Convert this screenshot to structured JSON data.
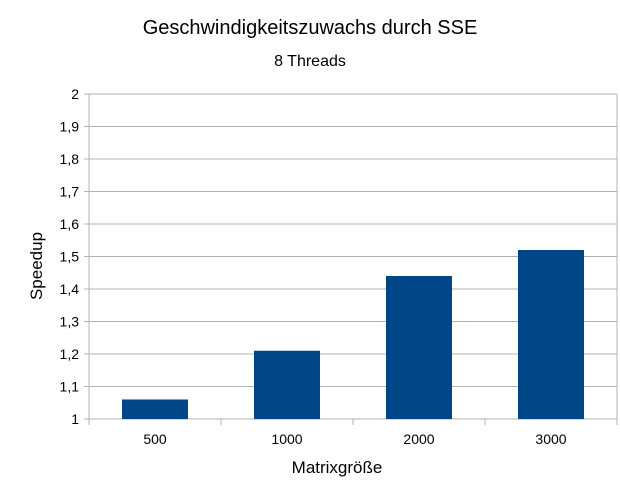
{
  "chart_data": {
    "type": "bar",
    "title": "Geschwindigkeitszuwachs durch SSE",
    "subtitle": "8 Threads",
    "xlabel": "Matrixgröße",
    "ylabel": "Speedup",
    "categories": [
      "500",
      "1000",
      "2000",
      "3000"
    ],
    "values": [
      1.06,
      1.21,
      1.44,
      1.52
    ],
    "ylim": [
      1,
      2
    ],
    "yticks": [
      "1",
      "1,1",
      "1,2",
      "1,3",
      "1,4",
      "1,5",
      "1,6",
      "1,7",
      "1,8",
      "1,9",
      "2"
    ],
    "grid": true,
    "legend": "none",
    "bar_color": "#004586"
  }
}
